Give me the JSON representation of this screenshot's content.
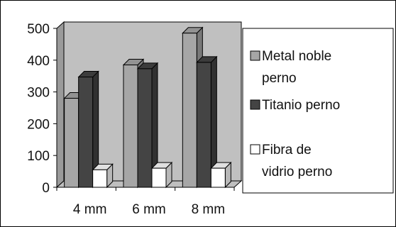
{
  "chart_data": {
    "type": "bar",
    "categories": [
      "4 mm",
      "6 mm",
      "8 mm"
    ],
    "series": [
      {
        "name": "Metal noble perno",
        "values": [
          280,
          385,
          485
        ],
        "color": "#a6a6a6"
      },
      {
        "name": "Titanio perno",
        "values": [
          347,
          373,
          393
        ],
        "color": "#444444"
      },
      {
        "name": "Fibra de vidrio perno",
        "values": [
          55,
          60,
          60
        ],
        "color": "#ffffff"
      }
    ],
    "ylim": [
      0,
      500
    ],
    "yticks": [
      0,
      100,
      200,
      300,
      400,
      500
    ],
    "ytick_labels": [
      "0",
      "100",
      "200",
      "300",
      "400",
      "500"
    ],
    "grid": false,
    "wall_color": "#c0c0c0",
    "legend_position": "right",
    "legend_lines": [
      [
        "Metal noble",
        "perno"
      ],
      [
        "Titanio perno"
      ],
      [
        "Fibra de",
        "vidrio perno"
      ]
    ]
  }
}
